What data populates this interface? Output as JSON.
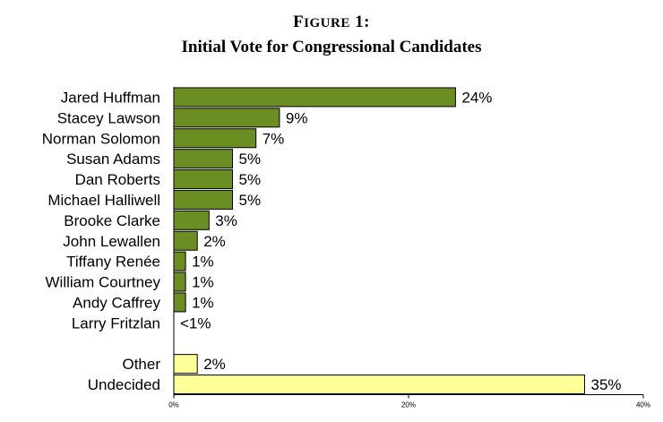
{
  "figure_label": "Figure 1:",
  "chart_data": {
    "type": "bar",
    "orientation": "horizontal",
    "title": "Initial Vote for Congressional Candidates",
    "categories": [
      "Jared Huffman",
      "Stacey Lawson",
      "Norman Solomon",
      "Susan Adams",
      "Dan Roberts",
      "Michael Halliwell",
      "Brooke Clarke",
      "John Lewallen",
      "Tiffany Renée",
      "William Courtney",
      "Andy Caffrey",
      "Larry Fritzlan",
      "",
      "Other",
      "Undecided"
    ],
    "values": [
      24,
      9,
      7,
      5,
      5,
      5,
      3,
      2,
      1,
      1,
      1,
      0,
      null,
      2,
      35
    ],
    "data_labels": [
      "24%",
      "9%",
      "7%",
      "5%",
      "5%",
      "5%",
      "3%",
      "2%",
      "1%",
      "1%",
      "1%",
      "<1%",
      "",
      "2%",
      "35%"
    ],
    "bar_colors": [
      "#6b8e23",
      "#6b8e23",
      "#6b8e23",
      "#6b8e23",
      "#6b8e23",
      "#6b8e23",
      "#6b8e23",
      "#6b8e23",
      "#6b8e23",
      "#6b8e23",
      "#6b8e23",
      "#6b8e23",
      "",
      "#ffff99",
      "#ffff99"
    ],
    "xlim": [
      0,
      40
    ],
    "xticks": [
      0,
      20,
      40
    ],
    "xtick_labels": [
      "0%",
      "20%",
      "40%"
    ],
    "xlabel": "",
    "ylabel": "",
    "grid": false,
    "legend": "none"
  }
}
